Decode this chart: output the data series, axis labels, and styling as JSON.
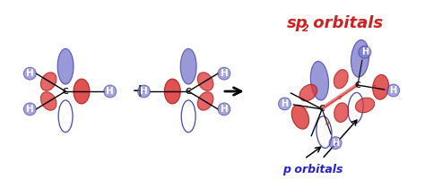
{
  "bg_color": "#ffffff",
  "blue_filled": "#7777cc",
  "blue_alpha": 0.75,
  "blue_outline": "#3333aa",
  "blue_hollow_outline": "#3333aa",
  "red_filled": "#dd3333",
  "red_alpha": 0.65,
  "red_outline": "#aa1111",
  "H_color": "#111111",
  "C_color": "#111111",
  "sigma_color": "#cc2222",
  "p_label_color": "#2222cc",
  "sp2_color": "#cc2222",
  "p_orbitals_label": "p orbitals",
  "sp2_label": "sp",
  "sp2_super": "2",
  "sp2_rest": " orbitals",
  "figw": 4.74,
  "figh": 2.1,
  "dpi": 100
}
